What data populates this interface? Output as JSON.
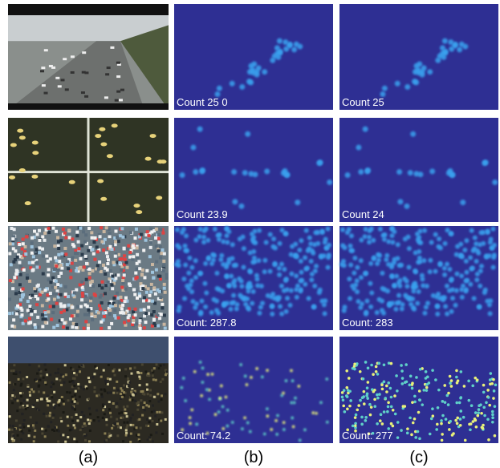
{
  "rows": [
    {
      "estimate": "Count 25 0",
      "ground_truth": "Count 25"
    },
    {
      "estimate": "Count 23.9",
      "ground_truth": "Count 24"
    },
    {
      "estimate": "Count: 287.8",
      "ground_truth": "Count: 283"
    },
    {
      "estimate": "Count: 74.2",
      "ground_truth": "Count: 277"
    }
  ],
  "column_labels": [
    "(a)",
    "(b)",
    "(c)"
  ]
}
